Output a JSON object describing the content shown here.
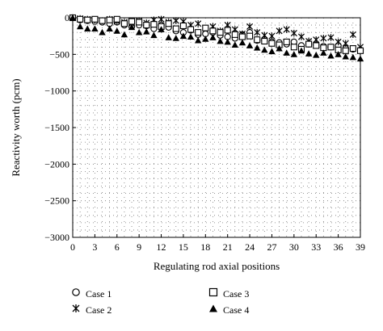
{
  "chart_data": {
    "type": "scatter",
    "xlabel": "Regulating rod axial positions",
    "ylabel": "Reactivity worth (pcm)",
    "xlim": [
      0,
      39
    ],
    "ylim": [
      -3000,
      0
    ],
    "x_ticks": [
      0,
      3,
      6,
      9,
      12,
      15,
      18,
      21,
      24,
      27,
      30,
      33,
      36,
      39
    ],
    "y_ticks": [
      0,
      -500,
      -1000,
      -1500,
      -2000,
      -2500,
      -3000
    ],
    "grid": "dotted",
    "legend_position": "below",
    "x": [
      0,
      1,
      2,
      3,
      4,
      5,
      6,
      7,
      8,
      9,
      10,
      11,
      12,
      13,
      14,
      15,
      16,
      17,
      18,
      19,
      20,
      21,
      22,
      23,
      24,
      25,
      26,
      27,
      28,
      29,
      30,
      31,
      32,
      33,
      34,
      35,
      36,
      37,
      38,
      39
    ],
    "series": [
      {
        "name": "Case 1",
        "marker": "circle",
        "values": [
          0,
          -30,
          -40,
          -50,
          -60,
          -80,
          -60,
          -100,
          -120,
          -100,
          -110,
          -150,
          -100,
          -130,
          -180,
          -200,
          -170,
          -230,
          -220,
          -200,
          -240,
          -260,
          -280,
          -230,
          -200,
          -310,
          -300,
          -330,
          -340,
          -360,
          -330,
          -380,
          -360,
          -370,
          -390,
          -400,
          -380,
          -420,
          -430,
          -440
        ]
      },
      {
        "name": "Case 2",
        "marker": "x",
        "values": [
          0,
          -10,
          -20,
          -30,
          -40,
          -20,
          -50,
          -60,
          -80,
          -40,
          -70,
          -30,
          -20,
          -60,
          -40,
          -50,
          -100,
          -80,
          -140,
          -120,
          -180,
          -100,
          -160,
          -220,
          -120,
          -200,
          -240,
          -250,
          -180,
          -160,
          -210,
          -260,
          -320,
          -300,
          -280,
          -270,
          -330,
          -350,
          -230,
          -400
        ]
      },
      {
        "name": "Case 3",
        "marker": "square",
        "values": [
          0,
          -20,
          -30,
          -20,
          -40,
          -30,
          -20,
          -80,
          -50,
          -60,
          -100,
          -90,
          -120,
          -80,
          -150,
          -110,
          -160,
          -200,
          -140,
          -180,
          -200,
          -170,
          -230,
          -260,
          -250,
          -300,
          -320,
          -350,
          -370,
          -330,
          -400,
          -430,
          -360,
          -380,
          -410,
          -400,
          -440,
          -450,
          -420,
          -450
        ]
      },
      {
        "name": "Case 4",
        "marker": "triangle",
        "values": [
          0,
          -120,
          -150,
          -150,
          -200,
          -150,
          -180,
          -230,
          -130,
          -200,
          -190,
          -240,
          -160,
          -270,
          -280,
          -250,
          -260,
          -310,
          -290,
          -270,
          -320,
          -330,
          -370,
          -340,
          -380,
          -410,
          -440,
          -460,
          -420,
          -480,
          -500,
          -450,
          -490,
          -510,
          -480,
          -520,
          -500,
          -530,
          -540,
          -560
        ]
      }
    ]
  },
  "legend": [
    {
      "label": "Case 1",
      "marker_icon": "circle-marker-icon"
    },
    {
      "label": "Case 3",
      "marker_icon": "square-marker-icon"
    },
    {
      "label": "Case 2",
      "marker_icon": "x-marker-icon"
    },
    {
      "label": "Case 4",
      "marker_icon": "triangle-marker-icon"
    }
  ]
}
